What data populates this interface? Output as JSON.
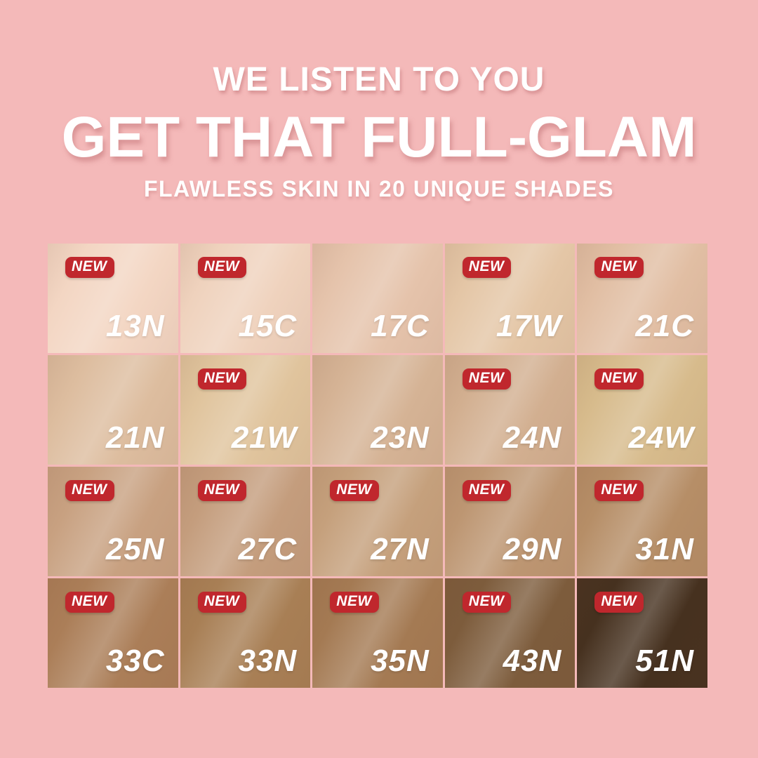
{
  "page": {
    "background_color": "#f4b9b9"
  },
  "header": {
    "line1": "WE LISTEN TO YOU",
    "line2": "GET THAT FULL-GLAM",
    "line3": "FLAWLESS SKIN IN 20 UNIQUE SHADES",
    "text_color": "#ffffff"
  },
  "badge": {
    "label": "NEW",
    "background_color": "#c0272d",
    "text_color": "#ffffff"
  },
  "grid": {
    "rows": 4,
    "columns": 5,
    "shade_count": 20,
    "shades": [
      {
        "code": "13N",
        "color": "#f3d6c3",
        "new": true
      },
      {
        "code": "15C",
        "color": "#efd2bd",
        "new": true
      },
      {
        "code": "17C",
        "color": "#e5c3ab",
        "new": false
      },
      {
        "code": "17W",
        "color": "#e4c6a6",
        "new": true
      },
      {
        "code": "21C",
        "color": "#e1bea3",
        "new": true
      },
      {
        "code": "21N",
        "color": "#ddbd9f",
        "new": false
      },
      {
        "code": "21W",
        "color": "#e0c49d",
        "new": true
      },
      {
        "code": "23N",
        "color": "#d5b395",
        "new": false
      },
      {
        "code": "24N",
        "color": "#d2af90",
        "new": true
      },
      {
        "code": "24W",
        "color": "#d7bb8c",
        "new": true
      },
      {
        "code": "25N",
        "color": "#c8a181",
        "new": true
      },
      {
        "code": "27C",
        "color": "#c49d7d",
        "new": true
      },
      {
        "code": "27N",
        "color": "#c5a07c",
        "new": true
      },
      {
        "code": "29N",
        "color": "#bd9672",
        "new": true
      },
      {
        "code": "31N",
        "color": "#b68e67",
        "new": true
      },
      {
        "code": "33C",
        "color": "#ab7e58",
        "new": true
      },
      {
        "code": "33N",
        "color": "#a87f55",
        "new": true
      },
      {
        "code": "35N",
        "color": "#a47a53",
        "new": true
      },
      {
        "code": "43N",
        "color": "#7d5c3c",
        "new": true
      },
      {
        "code": "51N",
        "color": "#46311f",
        "new": true
      }
    ]
  }
}
